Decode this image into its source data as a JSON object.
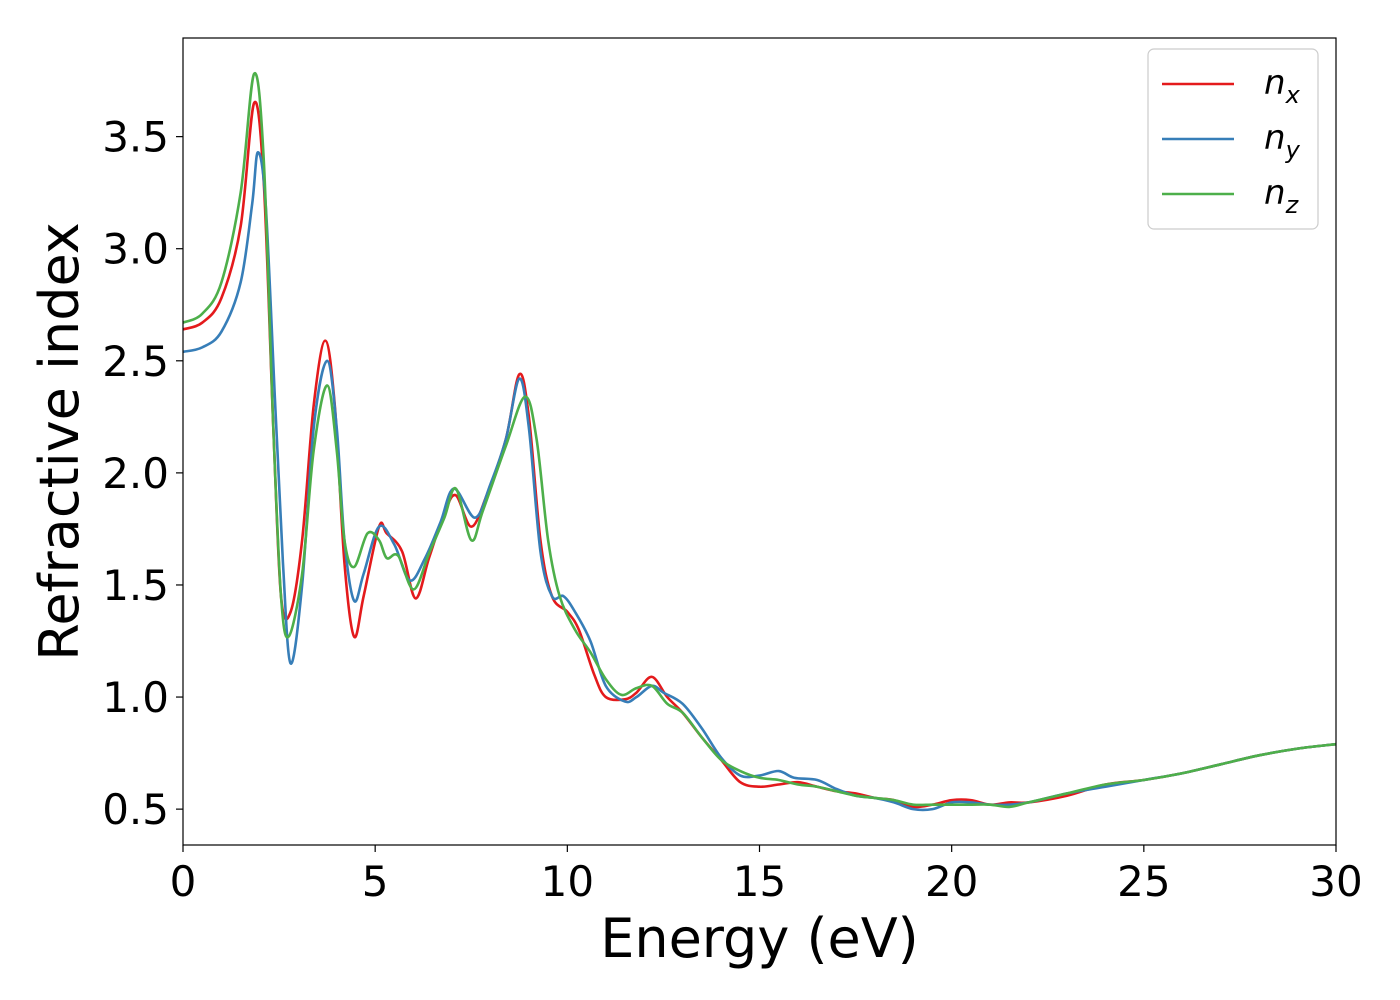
{
  "chart_data": {
    "type": "line",
    "title": "",
    "xlabel": "Energy (eV)",
    "ylabel": "Refractive index",
    "xlim": [
      0,
      30
    ],
    "ylim": [
      0.34,
      3.94
    ],
    "xticks": [
      "0",
      "5",
      "10",
      "15",
      "20",
      "25",
      "30"
    ],
    "yticks": [
      "0.5",
      "1.0",
      "1.5",
      "2.0",
      "2.5",
      "3.0",
      "3.5"
    ],
    "grid": false,
    "legend_position": "top-right",
    "series": [
      {
        "name": "n_x",
        "legend_main": "n",
        "legend_sub": "x",
        "color": "#e41a1c",
        "points": [
          [
            0,
            2.64
          ],
          [
            0.5,
            2.67
          ],
          [
            1.0,
            2.78
          ],
          [
            1.5,
            3.1
          ],
          [
            1.85,
            3.65
          ],
          [
            2.1,
            3.3
          ],
          [
            2.35,
            2.2
          ],
          [
            2.55,
            1.45
          ],
          [
            2.8,
            1.38
          ],
          [
            3.1,
            1.7
          ],
          [
            3.4,
            2.3
          ],
          [
            3.7,
            2.59
          ],
          [
            3.95,
            2.3
          ],
          [
            4.2,
            1.6
          ],
          [
            4.45,
            1.27
          ],
          [
            4.7,
            1.45
          ],
          [
            5.1,
            1.76
          ],
          [
            5.3,
            1.73
          ],
          [
            5.7,
            1.65
          ],
          [
            6.05,
            1.44
          ],
          [
            6.4,
            1.62
          ],
          [
            6.8,
            1.82
          ],
          [
            7.1,
            1.9
          ],
          [
            7.5,
            1.76
          ],
          [
            7.9,
            1.9
          ],
          [
            8.4,
            2.15
          ],
          [
            8.75,
            2.44
          ],
          [
            9.0,
            2.25
          ],
          [
            9.3,
            1.7
          ],
          [
            9.6,
            1.45
          ],
          [
            10.0,
            1.38
          ],
          [
            10.3,
            1.3
          ],
          [
            10.7,
            1.1
          ],
          [
            11.0,
            1.0
          ],
          [
            11.5,
            0.99
          ],
          [
            11.8,
            1.02
          ],
          [
            12.2,
            1.09
          ],
          [
            12.6,
            1.0
          ],
          [
            13.0,
            0.93
          ],
          [
            13.5,
            0.82
          ],
          [
            14.0,
            0.72
          ],
          [
            14.5,
            0.62
          ],
          [
            15.0,
            0.6
          ],
          [
            15.5,
            0.61
          ],
          [
            16.0,
            0.62
          ],
          [
            16.5,
            0.6
          ],
          [
            17.0,
            0.58
          ],
          [
            17.5,
            0.57
          ],
          [
            18.0,
            0.55
          ],
          [
            18.5,
            0.54
          ],
          [
            19.0,
            0.51
          ],
          [
            19.5,
            0.52
          ],
          [
            20.0,
            0.54
          ],
          [
            20.5,
            0.54
          ],
          [
            21.0,
            0.52
          ],
          [
            21.5,
            0.53
          ],
          [
            22.0,
            0.53
          ],
          [
            23.0,
            0.56
          ],
          [
            24.0,
            0.61
          ],
          [
            25.0,
            0.63
          ],
          [
            26.0,
            0.66
          ],
          [
            27.0,
            0.7
          ],
          [
            28.0,
            0.74
          ],
          [
            29.0,
            0.77
          ],
          [
            30.0,
            0.79
          ]
        ]
      },
      {
        "name": "n_y",
        "legend_main": "n",
        "legend_sub": "y",
        "color": "#377eb8",
        "points": [
          [
            0,
            2.54
          ],
          [
            0.5,
            2.56
          ],
          [
            1.0,
            2.63
          ],
          [
            1.5,
            2.85
          ],
          [
            1.8,
            3.2
          ],
          [
            1.95,
            3.43
          ],
          [
            2.15,
            3.2
          ],
          [
            2.4,
            2.3
          ],
          [
            2.6,
            1.6
          ],
          [
            2.8,
            1.15
          ],
          [
            3.1,
            1.5
          ],
          [
            3.4,
            2.2
          ],
          [
            3.75,
            2.5
          ],
          [
            4.0,
            2.2
          ],
          [
            4.2,
            1.7
          ],
          [
            4.45,
            1.43
          ],
          [
            4.7,
            1.55
          ],
          [
            5.1,
            1.76
          ],
          [
            5.5,
            1.68
          ],
          [
            5.9,
            1.52
          ],
          [
            6.3,
            1.62
          ],
          [
            6.7,
            1.78
          ],
          [
            7.05,
            1.93
          ],
          [
            7.6,
            1.8
          ],
          [
            8.0,
            1.95
          ],
          [
            8.4,
            2.15
          ],
          [
            8.75,
            2.42
          ],
          [
            9.0,
            2.2
          ],
          [
            9.3,
            1.65
          ],
          [
            9.6,
            1.45
          ],
          [
            9.9,
            1.45
          ],
          [
            10.2,
            1.38
          ],
          [
            10.6,
            1.25
          ],
          [
            11.0,
            1.05
          ],
          [
            11.5,
            0.98
          ],
          [
            11.8,
            1.0
          ],
          [
            12.2,
            1.05
          ],
          [
            12.5,
            1.02
          ],
          [
            13.0,
            0.97
          ],
          [
            13.5,
            0.86
          ],
          [
            14.0,
            0.73
          ],
          [
            14.5,
            0.65
          ],
          [
            15.0,
            0.65
          ],
          [
            15.5,
            0.67
          ],
          [
            15.9,
            0.64
          ],
          [
            16.5,
            0.63
          ],
          [
            17.0,
            0.59
          ],
          [
            17.5,
            0.56
          ],
          [
            18.0,
            0.55
          ],
          [
            18.5,
            0.53
          ],
          [
            19.0,
            0.5
          ],
          [
            19.5,
            0.5
          ],
          [
            20.0,
            0.53
          ],
          [
            20.5,
            0.53
          ],
          [
            21.0,
            0.52
          ],
          [
            21.5,
            0.52
          ],
          [
            22.0,
            0.53
          ],
          [
            23.0,
            0.57
          ],
          [
            24.0,
            0.6
          ],
          [
            25.0,
            0.63
          ],
          [
            26.0,
            0.66
          ],
          [
            27.0,
            0.7
          ],
          [
            28.0,
            0.74
          ],
          [
            29.0,
            0.77
          ],
          [
            30.0,
            0.79
          ]
        ]
      },
      {
        "name": "n_z",
        "legend_main": "n",
        "legend_sub": "z",
        "color": "#4daf4a",
        "points": [
          [
            0,
            2.67
          ],
          [
            0.5,
            2.71
          ],
          [
            1.0,
            2.85
          ],
          [
            1.5,
            3.25
          ],
          [
            1.85,
            3.78
          ],
          [
            2.1,
            3.4
          ],
          [
            2.35,
            2.2
          ],
          [
            2.55,
            1.45
          ],
          [
            2.75,
            1.27
          ],
          [
            3.1,
            1.55
          ],
          [
            3.4,
            2.1
          ],
          [
            3.75,
            2.39
          ],
          [
            4.0,
            2.1
          ],
          [
            4.2,
            1.7
          ],
          [
            4.45,
            1.58
          ],
          [
            4.8,
            1.73
          ],
          [
            5.1,
            1.7
          ],
          [
            5.3,
            1.62
          ],
          [
            5.6,
            1.63
          ],
          [
            6.0,
            1.48
          ],
          [
            6.4,
            1.64
          ],
          [
            6.8,
            1.8
          ],
          [
            7.1,
            1.93
          ],
          [
            7.5,
            1.7
          ],
          [
            7.8,
            1.83
          ],
          [
            8.4,
            2.12
          ],
          [
            8.9,
            2.34
          ],
          [
            9.2,
            2.15
          ],
          [
            9.5,
            1.7
          ],
          [
            9.8,
            1.45
          ],
          [
            10.2,
            1.3
          ],
          [
            10.6,
            1.2
          ],
          [
            11.0,
            1.08
          ],
          [
            11.4,
            1.01
          ],
          [
            11.8,
            1.04
          ],
          [
            12.2,
            1.05
          ],
          [
            12.6,
            0.97
          ],
          [
            13.0,
            0.93
          ],
          [
            13.5,
            0.82
          ],
          [
            14.0,
            0.72
          ],
          [
            14.5,
            0.67
          ],
          [
            15.0,
            0.64
          ],
          [
            15.5,
            0.63
          ],
          [
            16.0,
            0.61
          ],
          [
            16.5,
            0.6
          ],
          [
            17.0,
            0.58
          ],
          [
            17.5,
            0.56
          ],
          [
            18.0,
            0.55
          ],
          [
            18.5,
            0.54
          ],
          [
            19.0,
            0.52
          ],
          [
            19.5,
            0.52
          ],
          [
            20.0,
            0.52
          ],
          [
            20.5,
            0.52
          ],
          [
            21.0,
            0.52
          ],
          [
            21.5,
            0.51
          ],
          [
            22.0,
            0.53
          ],
          [
            23.0,
            0.57
          ],
          [
            24.0,
            0.61
          ],
          [
            25.0,
            0.63
          ],
          [
            26.0,
            0.66
          ],
          [
            27.0,
            0.7
          ],
          [
            28.0,
            0.74
          ],
          [
            29.0,
            0.77
          ],
          [
            30.0,
            0.79
          ]
        ]
      }
    ]
  }
}
